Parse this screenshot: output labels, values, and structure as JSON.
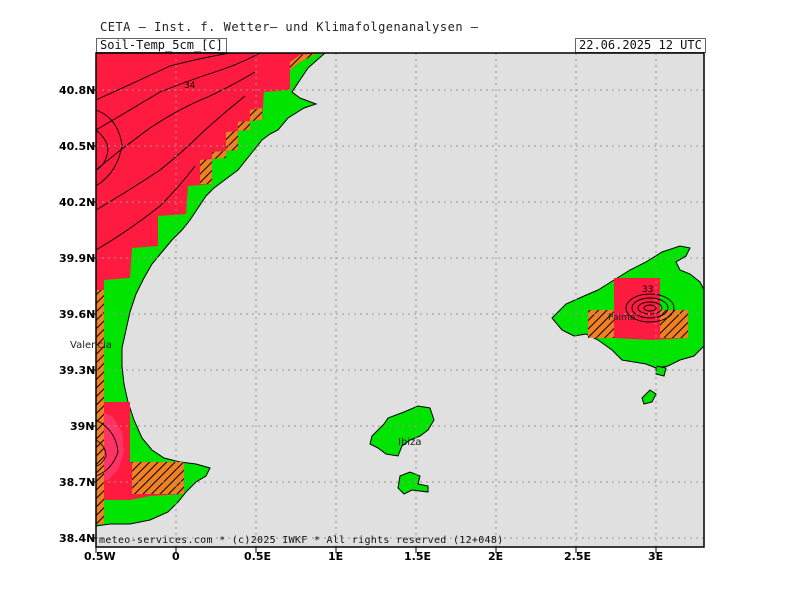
{
  "header": {
    "org": "CETA — Inst. f. Wetter— und Klimafolgenanalysen —"
  },
  "map": {
    "field_label": "Soil-Temp_5cm_[C]",
    "valid_time": "22.06.2025  12 UTC",
    "footer": "meteo-services.com * (c)2025 IWKF * All rights reserved (12+048)",
    "lat_labels": [
      "40.8N",
      "40.5N",
      "40.2N",
      "39.9N",
      "39.6N",
      "39.3N",
      "39N",
      "38.7N",
      "38.4N"
    ],
    "lon_labels": [
      "0.5W",
      "0",
      "0.5E",
      "1E",
      "1.5E",
      "2E",
      "2.5E",
      "3E"
    ],
    "places": {
      "valencia": "Valencia",
      "ibiza": "Ibiza",
      "palma": "Palma"
    },
    "contour_label": "34",
    "contour_label_palma": "33",
    "colors": {
      "sea": "#e0e0e0",
      "land": "#00e400",
      "warm": "#ff1a40",
      "hot": "#ff3366",
      "hatch": "#f08020",
      "grid": "#999999"
    }
  }
}
